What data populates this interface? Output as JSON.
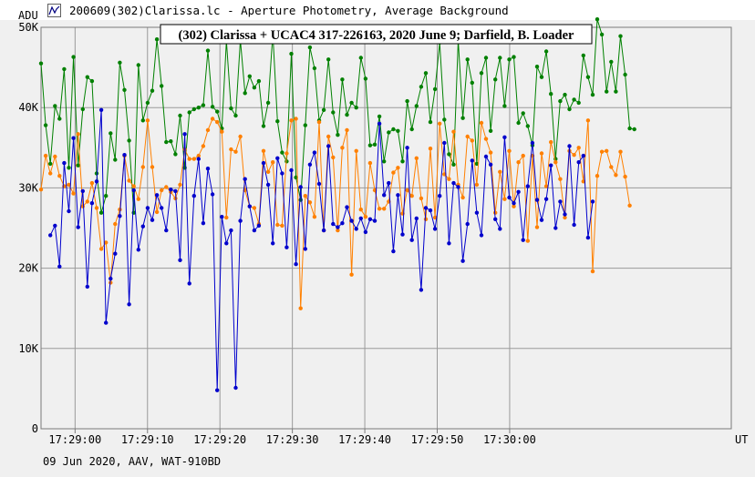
{
  "window": {
    "title": "200609(302)Clarissa.lc - Aperture Photometry, Average Background",
    "icon": "light-curve-icon"
  },
  "footer": {
    "text": "09 Jun 2020, AAV, WAT-910BD"
  },
  "colors": {
    "background": "#f0f0f0",
    "grid": "#9a9a9a",
    "series_green": "#008000",
    "series_orange": "#ff8000",
    "series_blue": "#0000cc"
  },
  "chart_data": {
    "type": "line",
    "title": "(302) Clarissa + UCAC4 317-226163, 2020 June 9; Darfield, B. Loader",
    "ylabel": "ADU",
    "xlabel": "UT",
    "ylim": [
      0,
      50000
    ],
    "xlim": [
      "17:28:55.3",
      "17:30:30.6"
    ],
    "y_ticks": [
      {
        "label": "0",
        "value": 0
      },
      {
        "label": "10K",
        "value": 10000
      },
      {
        "label": "20K",
        "value": 20000
      },
      {
        "label": "30K",
        "value": 30000
      },
      {
        "label": "40K",
        "value": 40000
      },
      {
        "label": "50K",
        "value": 50000
      }
    ],
    "x_ticks": [
      {
        "label": "17:29:00",
        "value": "17:29:00"
      },
      {
        "label": "17:29:10",
        "value": "17:29:10"
      },
      {
        "label": "17:29:20",
        "value": "17:29:20"
      },
      {
        "label": "17:29:30",
        "value": "17:29:30"
      },
      {
        "label": "17:29:40",
        "value": "17:29:40"
      },
      {
        "label": "17:29:50",
        "value": "17:29:50"
      },
      {
        "label": "17:30:00",
        "value": "17:30:00"
      }
    ],
    "grid": true,
    "x_start": "17:28:55.3",
    "x_step_seconds": 0.64,
    "series": [
      {
        "color": "#008000",
        "values": [
          45500,
          37800,
          33000,
          40200,
          38600,
          44800,
          32500,
          46300,
          32800,
          39800,
          43800,
          43300,
          31800,
          26900,
          29000,
          36800,
          33500,
          45600,
          42200,
          35900,
          26900,
          45300,
          38400,
          40600,
          42100,
          48500,
          42700,
          35700,
          35800,
          34200,
          39000,
          32500,
          39400,
          39800,
          40000,
          40300,
          47100,
          40100,
          39500,
          37400,
          48300,
          39900,
          39000,
          48400,
          41800,
          43900,
          42500,
          43300,
          37700,
          40600,
          49200,
          38300,
          34400,
          33300,
          46700,
          31300,
          28500,
          37800,
          47500,
          44900,
          38400,
          39700,
          46000,
          39400,
          36600,
          43500,
          39100,
          40600,
          40000,
          46200,
          43600,
          35300,
          35400,
          38900,
          33300,
          36900,
          37300,
          37100,
          33300,
          40800,
          37300,
          40200,
          42600,
          44300,
          38200,
          42300,
          48100,
          38500,
          34200,
          32900,
          48400,
          38700,
          46000,
          43100,
          33000,
          44300,
          46200,
          37100,
          43500,
          46200,
          40200,
          46000,
          46300,
          38100,
          39300,
          37700,
          35300,
          45100,
          43800,
          47000,
          41700,
          33600,
          40800,
          41600,
          39800,
          41000,
          40600,
          46500,
          43800,
          41600,
          51000,
          49100,
          42000,
          45700,
          42000,
          48900,
          44100,
          37400,
          37300
        ]
      },
      {
        "color": "#ff8000",
        "values": [
          29800,
          34000,
          31800,
          33900,
          31500,
          30200,
          30400,
          29300,
          36700,
          27700,
          28300,
          30600,
          27500,
          22400,
          23200,
          18200,
          25500,
          27300,
          34000,
          30900,
          30200,
          28600,
          32600,
          38400,
          32600,
          27000,
          29700,
          30100,
          29500,
          28700,
          30400,
          34800,
          33600,
          33600,
          34000,
          35200,
          37200,
          38600,
          38200,
          37000,
          26300,
          34800,
          34500,
          36400,
          29700,
          27700,
          27500,
          25500,
          34600,
          32000,
          33200,
          25400,
          25300,
          34300,
          38400,
          38600,
          15000,
          29000,
          28200,
          26400,
          38200,
          24700,
          36400,
          33800,
          24700,
          35000,
          37200,
          19200,
          34600,
          27300,
          26400,
          33100,
          29700,
          27400,
          27400,
          28300,
          31900,
          32500,
          26800,
          29700,
          29000,
          33700,
          28700,
          26100,
          34900,
          26300,
          38000,
          31700,
          31100,
          37000,
          30400,
          28800,
          36400,
          35900,
          30400,
          38100,
          36100,
          34400,
          26900,
          32000,
          28600,
          34600,
          27700,
          33200,
          34000,
          23400,
          34000,
          25100,
          34300,
          30200,
          35700,
          33200,
          31100,
          26300,
          34600,
          34100,
          35000,
          30800,
          38400,
          19600,
          31500,
          34500,
          34600,
          32600,
          31600,
          34500,
          31400,
          27800
        ]
      },
      {
        "color": "#0000cc",
        "values": [
          24100,
          25300,
          20200,
          33100,
          27100,
          36200,
          25100,
          29600,
          17700,
          28100,
          30800,
          39700,
          13200,
          18700,
          21800,
          26500,
          34100,
          15500,
          29700,
          22300,
          25200,
          27500,
          26000,
          29100,
          27500,
          24700,
          29800,
          29600,
          21000,
          36700,
          18100,
          29000,
          33600,
          25600,
          32400,
          29200,
          4800,
          26400,
          23100,
          24700,
          5100,
          25900,
          31100,
          27700,
          24700,
          25300,
          33100,
          30400,
          23100,
          33700,
          31800,
          22600,
          32200,
          20500,
          30100,
          22400,
          32900,
          34400,
          30500,
          24700,
          35200,
          25500,
          25100,
          25600,
          27600,
          25900,
          24900,
          26200,
          24500,
          26100,
          25900,
          38000,
          29100,
          30600,
          22100,
          29100,
          24200,
          35000,
          23500,
          26200,
          17300,
          27500,
          27200,
          24900,
          29000,
          35600,
          23100,
          30600,
          30100,
          20900,
          25500,
          33400,
          26900,
          24100,
          33900,
          32900,
          26100,
          24900,
          36300,
          28800,
          28100,
          29500,
          23500,
          30200,
          35600,
          28500,
          26000,
          28600,
          32800,
          25000,
          28300,
          26700,
          35200,
          25400,
          33200,
          34000,
          23800,
          28300
        ],
        "x_offset_points": 2
      }
    ],
    "legend": "none"
  }
}
